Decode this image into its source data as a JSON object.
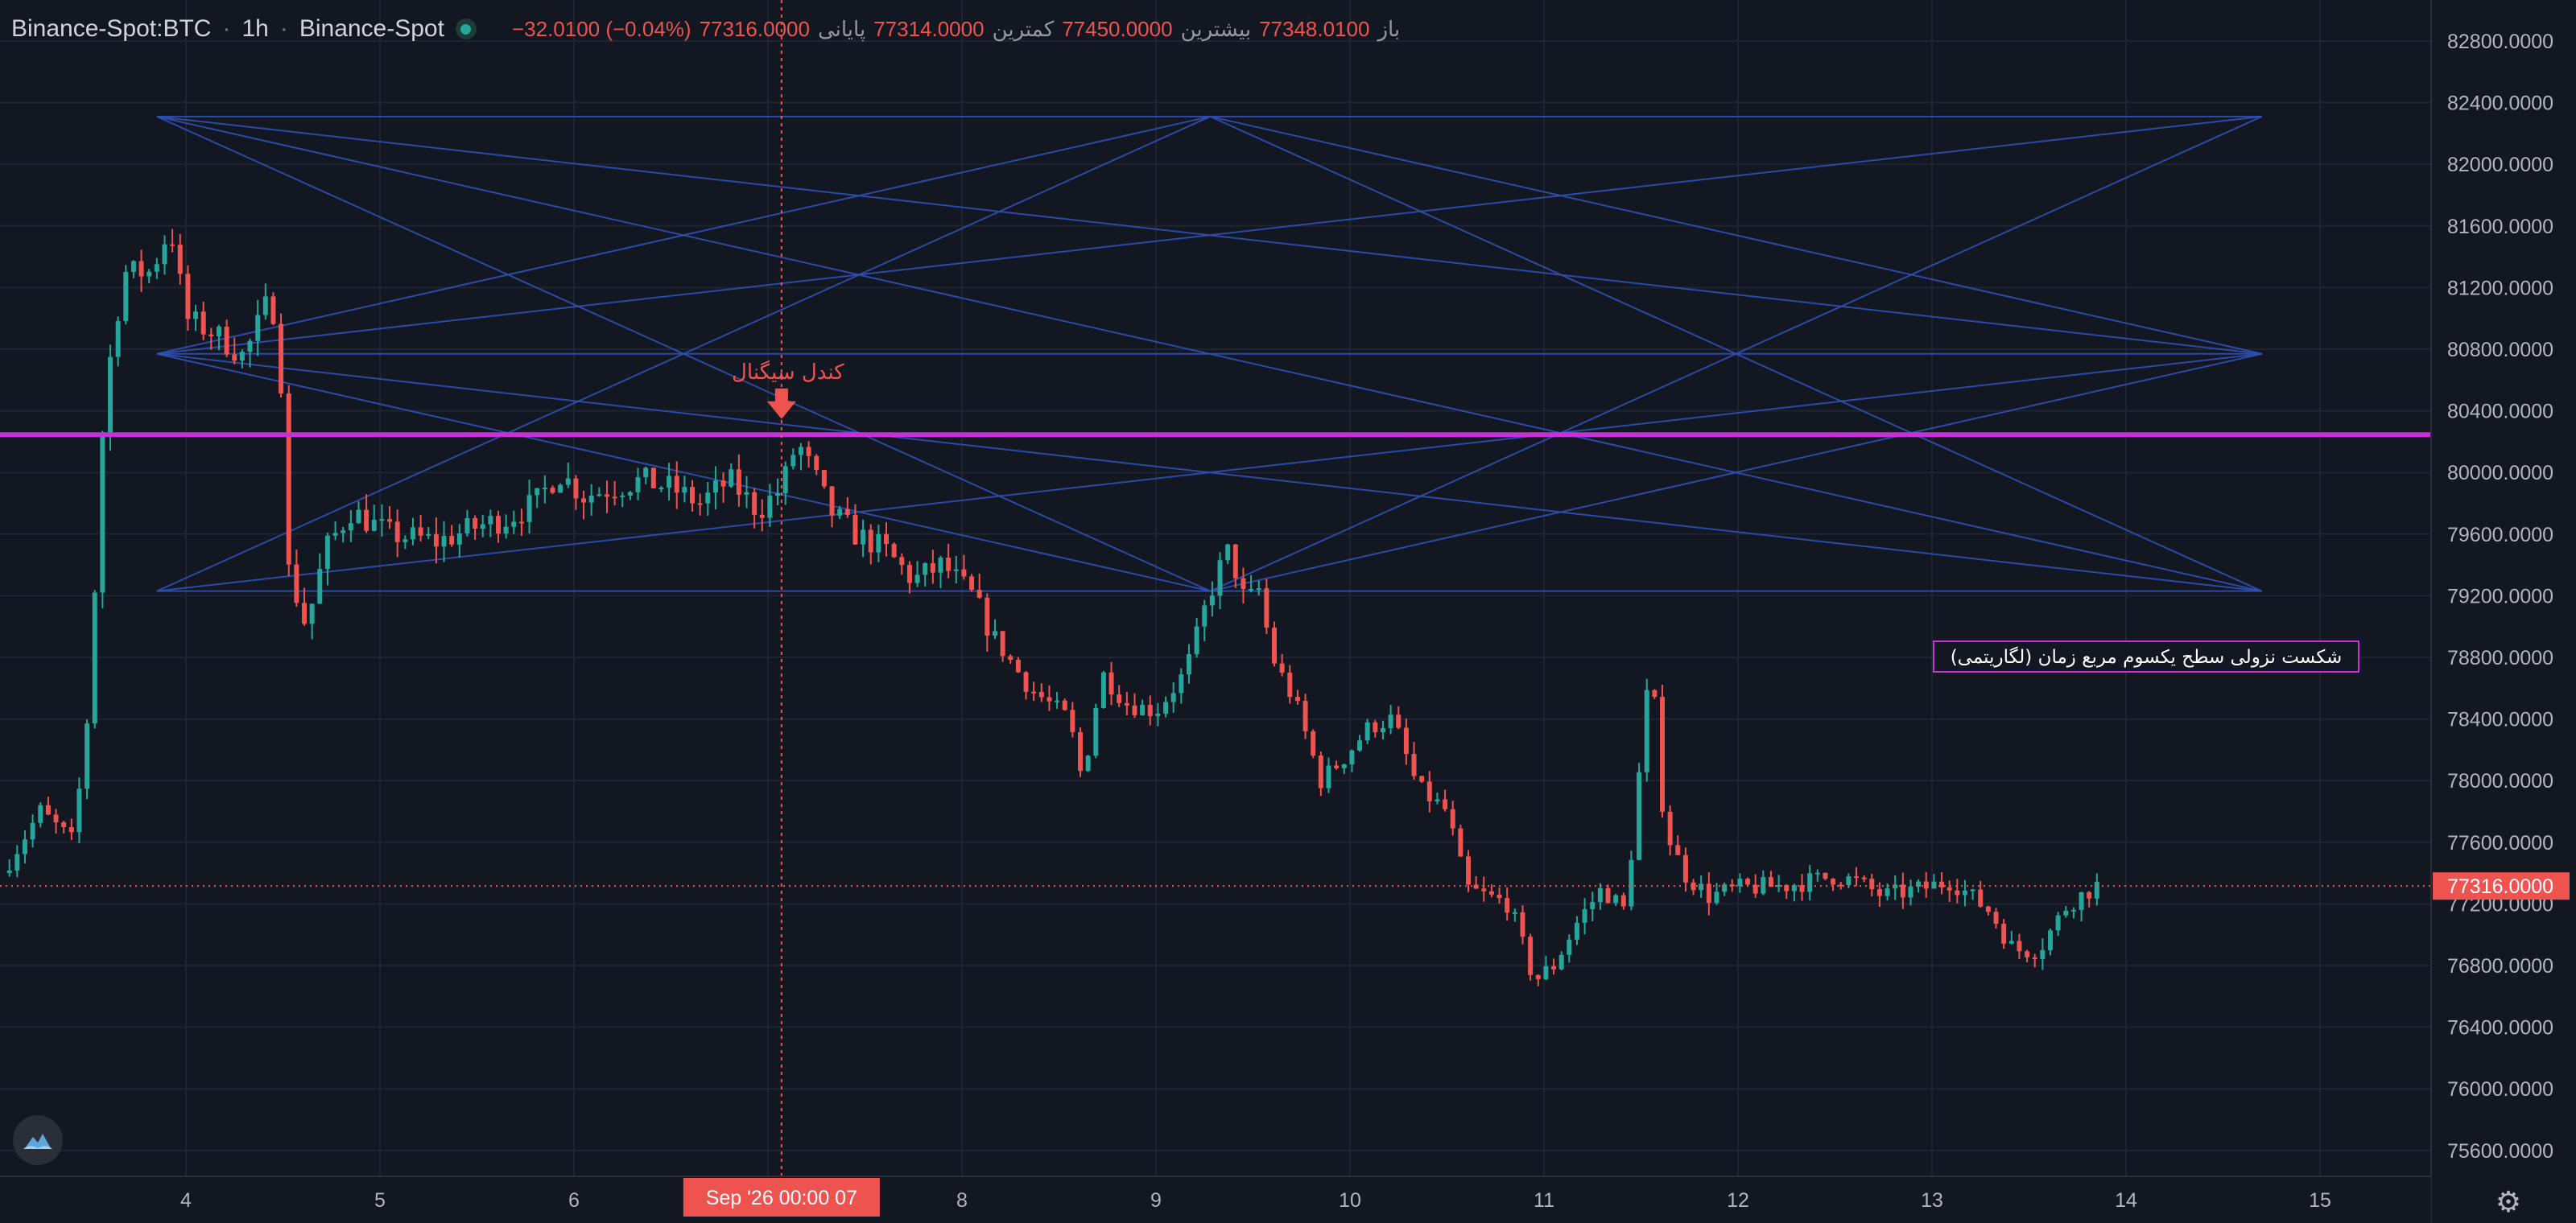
{
  "header": {
    "symbol": "Binance-Spot:BTC",
    "interval": "1h",
    "exchange": "Binance-Spot",
    "ohlc": {
      "open_label": "باز",
      "open": "77348.0100",
      "high_label": "بیشترین",
      "high": "77450.0000",
      "low_label": "کمترین",
      "low": "77314.0000",
      "close_label": "پایانی",
      "close": "77316.0000",
      "change": "−32.0100 (−0.04%)"
    }
  },
  "colors": {
    "background": "#131722",
    "grid": "#1f2433",
    "up": "#26a69a",
    "down": "#ef5350",
    "fan_lines": "#2f50b4",
    "level_line": "#c72fd9",
    "annotation_text": "#ef5350",
    "note_border": "#c72fd9"
  },
  "icons": {
    "status": "status-dot-icon",
    "logo": "tradingview-cloud-icon",
    "settings": "gear-icon"
  },
  "chart_data": {
    "type": "candlestick",
    "x_axis": {
      "tick_labels": [
        "4",
        "5",
        "6",
        "7",
        "8",
        "9",
        "10",
        "11",
        "12",
        "13",
        "14",
        "15"
      ],
      "crosshair_label": "Sep '26   00:00 07"
    },
    "y_axis": {
      "min": 75400,
      "max": 83000,
      "tick_labels": [
        "82800.0000",
        "82400.0000",
        "82000.0000",
        "81600.0000",
        "81200.0000",
        "80800.0000",
        "80400.0000",
        "80000.0000",
        "79600.0000",
        "79200.0000",
        "78800.0000",
        "78400.0000",
        "78000.0000",
        "77600.0000",
        "77200.0000",
        "76800.0000",
        "76400.0000",
        "76000.0000",
        "75600.0000"
      ],
      "last_price_label": "77316.0000",
      "last_price": 77316
    },
    "horizontal_level": 80245,
    "signal_label": "کندل سیگنال",
    "signal_price": 80420,
    "note": "شکست نزولی سطح یکسوم مربع زمان (لگاریتمی)",
    "fan_lines": [
      {
        "from": [
          3.85,
          82310
        ],
        "to": [
          14.7,
          82310
        ]
      },
      {
        "from": [
          3.85,
          82310
        ],
        "to": [
          14.7,
          79230
        ]
      },
      {
        "from": [
          3.85,
          82310
        ],
        "to": [
          14.7,
          80770
        ]
      },
      {
        "from": [
          3.85,
          80770
        ],
        "to": [
          14.7,
          82310
        ]
      },
      {
        "from": [
          3.85,
          80770
        ],
        "to": [
          14.7,
          80770
        ]
      },
      {
        "from": [
          3.85,
          80770
        ],
        "to": [
          14.7,
          79230
        ]
      },
      {
        "from": [
          3.85,
          79230
        ],
        "to": [
          14.7,
          79230
        ]
      },
      {
        "from": [
          3.85,
          79230
        ],
        "to": [
          14.7,
          80770
        ]
      },
      {
        "from": [
          3.85,
          79230
        ],
        "to": [
          9.28,
          82310
        ]
      },
      {
        "from": [
          3.85,
          80770
        ],
        "to": [
          9.28,
          82310
        ]
      },
      {
        "from": [
          9.28,
          82310
        ],
        "to": [
          14.7,
          80770
        ]
      },
      {
        "from": [
          9.28,
          82310
        ],
        "to": [
          14.7,
          79230
        ]
      },
      {
        "from": [
          3.85,
          82310
        ],
        "to": [
          9.28,
          79230
        ]
      },
      {
        "from": [
          3.85,
          80770
        ],
        "to": [
          9.28,
          79230
        ]
      },
      {
        "from": [
          9.28,
          79230
        ],
        "to": [
          14.7,
          82310
        ]
      },
      {
        "from": [
          9.28,
          79230
        ],
        "to": [
          14.7,
          80770
        ]
      }
    ],
    "anchors": [
      [
        3.05,
        77400
      ],
      [
        3.25,
        77800
      ],
      [
        3.42,
        77600
      ],
      [
        3.5,
        78500
      ],
      [
        3.58,
        80500
      ],
      [
        3.68,
        81300
      ],
      [
        3.82,
        81300
      ],
      [
        3.92,
        81600
      ],
      [
        4.0,
        81000
      ],
      [
        4.15,
        80900
      ],
      [
        4.3,
        80750
      ],
      [
        4.42,
        81100
      ],
      [
        4.48,
        81000
      ],
      [
        4.52,
        79400
      ],
      [
        4.62,
        79000
      ],
      [
        4.72,
        79500
      ],
      [
        4.85,
        79750
      ],
      [
        5.05,
        79600
      ],
      [
        5.3,
        79550
      ],
      [
        5.5,
        79650
      ],
      [
        5.65,
        79700
      ],
      [
        5.8,
        79800
      ],
      [
        5.92,
        80000
      ],
      [
        6.05,
        79850
      ],
      [
        6.2,
        79900
      ],
      [
        6.35,
        79950
      ],
      [
        6.5,
        79900
      ],
      [
        6.65,
        79800
      ],
      [
        6.8,
        79950
      ],
      [
        6.95,
        79750
      ],
      [
        7.07,
        79900
      ],
      [
        7.15,
        80200
      ],
      [
        7.25,
        79950
      ],
      [
        7.32,
        79750
      ],
      [
        7.45,
        79600
      ],
      [
        7.6,
        79500
      ],
      [
        7.75,
        79300
      ],
      [
        7.9,
        79400
      ],
      [
        8.05,
        79200
      ],
      [
        8.18,
        78900
      ],
      [
        8.35,
        78600
      ],
      [
        8.55,
        78400
      ],
      [
        8.62,
        78000
      ],
      [
        8.72,
        78700
      ],
      [
        8.85,
        78500
      ],
      [
        9.0,
        78450
      ],
      [
        9.15,
        78700
      ],
      [
        9.3,
        79300
      ],
      [
        9.38,
        79500
      ],
      [
        9.47,
        79100
      ],
      [
        9.52,
        79300
      ],
      [
        9.6,
        78800
      ],
      [
        9.72,
        78500
      ],
      [
        9.85,
        78000
      ],
      [
        9.97,
        78150
      ],
      [
        10.1,
        78350
      ],
      [
        10.22,
        78400
      ],
      [
        10.35,
        77950
      ],
      [
        10.5,
        77800
      ],
      [
        10.6,
        77300
      ],
      [
        10.7,
        77250
      ],
      [
        10.82,
        77200
      ],
      [
        10.95,
        76700
      ],
      [
        11.05,
        76800
      ],
      [
        11.18,
        77100
      ],
      [
        11.3,
        77300
      ],
      [
        11.42,
        77150
      ],
      [
        11.55,
        78800
      ],
      [
        11.62,
        77700
      ],
      [
        11.72,
        77400
      ],
      [
        11.85,
        77250
      ],
      [
        12.0,
        77300
      ],
      [
        12.25,
        77320
      ],
      [
        12.5,
        77380
      ],
      [
        12.6,
        77350
      ],
      [
        12.75,
        77250
      ],
      [
        12.95,
        77300
      ],
      [
        13.1,
        77350
      ],
      [
        13.3,
        77150
      ],
      [
        13.42,
        76900
      ],
      [
        13.55,
        76900
      ],
      [
        13.7,
        77200
      ],
      [
        13.85,
        77320
      ]
    ],
    "generated_points": 270
  }
}
